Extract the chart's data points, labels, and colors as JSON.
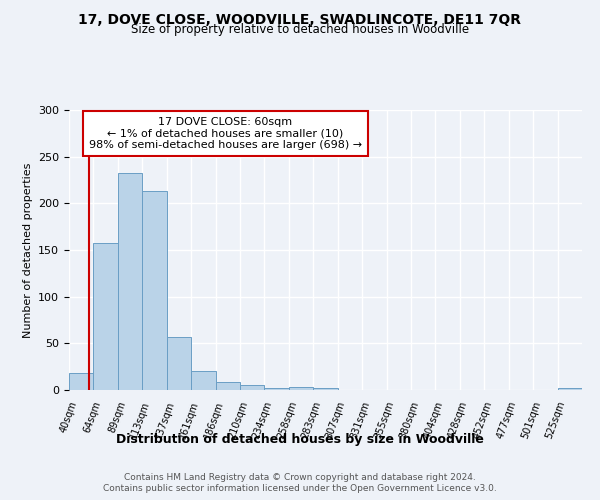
{
  "title": "17, DOVE CLOSE, WOODVILLE, SWADLINCOTE, DE11 7QR",
  "subtitle": "Size of property relative to detached houses in Woodville",
  "xlabel": "Distribution of detached houses by size in Woodville",
  "ylabel": "Number of detached properties",
  "bin_labels": [
    "40sqm",
    "64sqm",
    "89sqm",
    "113sqm",
    "137sqm",
    "161sqm",
    "186sqm",
    "210sqm",
    "234sqm",
    "258sqm",
    "283sqm",
    "307sqm",
    "331sqm",
    "355sqm",
    "380sqm",
    "404sqm",
    "428sqm",
    "452sqm",
    "477sqm",
    "501sqm",
    "525sqm"
  ],
  "bar_values": [
    18,
    158,
    233,
    213,
    57,
    20,
    9,
    5,
    2,
    3,
    2,
    0,
    0,
    0,
    0,
    0,
    0,
    0,
    0,
    0,
    2
  ],
  "bar_color": "#bad3e8",
  "bar_edge_color": "#6a9ec5",
  "property_line_color": "#cc0000",
  "annotation_line1": "17 DOVE CLOSE: 60sqm",
  "annotation_line2": "← 1% of detached houses are smaller (10)",
  "annotation_line3": "98% of semi-detached houses are larger (698) →",
  "annotation_box_color": "#ffffff",
  "annotation_box_edge_color": "#cc0000",
  "ylim": [
    0,
    300
  ],
  "yticks": [
    0,
    50,
    100,
    150,
    200,
    250,
    300
  ],
  "footer_line1": "Contains HM Land Registry data © Crown copyright and database right 2024.",
  "footer_line2": "Contains public sector information licensed under the Open Government Licence v3.0.",
  "background_color": "#eef2f8",
  "grid_color": "#ffffff"
}
